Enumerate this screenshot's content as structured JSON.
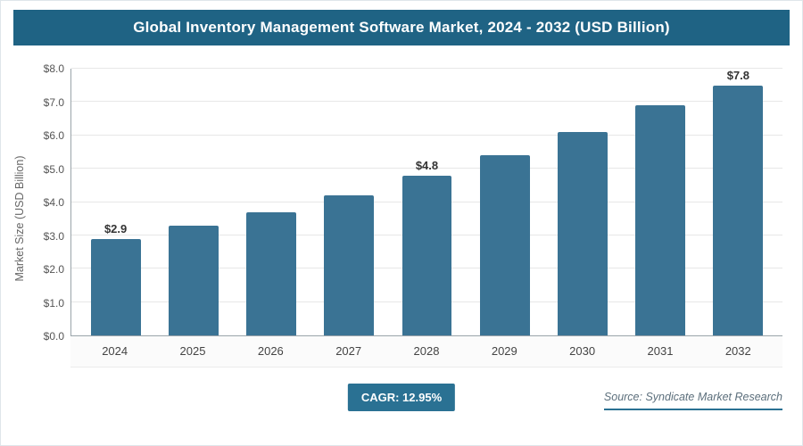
{
  "header": {
    "title": "Global Inventory Management Software Market, 2024 - 2032 (USD Billion)"
  },
  "footer": {
    "cagr_label": "CAGR: 12.95%",
    "source": "Source: Syndicate Market Research"
  },
  "colors": {
    "header_bg": "#1F6384",
    "bar": "#3A7394",
    "badge_bg": "#2A7193"
  },
  "chart_data": {
    "type": "bar",
    "title": "Global Inventory Management Software Market, 2024 - 2032 (USD Billion)",
    "categories": [
      "2024",
      "2025",
      "2026",
      "2027",
      "2028",
      "2029",
      "2030",
      "2031",
      "2032"
    ],
    "values": [
      2.9,
      3.3,
      3.7,
      4.2,
      4.8,
      5.4,
      6.1,
      6.9,
      7.8
    ],
    "point_labels": [
      "$2.9",
      "",
      "",
      "",
      "$4.8",
      "",
      "",
      "",
      "$7.8"
    ],
    "xlabel": "",
    "ylabel": "Market Size (USD Billion)",
    "y_ticks": [
      "$0.0",
      "$1.0",
      "$2.0",
      "$3.0",
      "$4.0",
      "$5.0",
      "$6.0",
      "$7.0",
      "$8.0"
    ],
    "ylim": [
      0,
      8
    ],
    "grid": true,
    "legend": false,
    "cagr": "12.95%"
  }
}
